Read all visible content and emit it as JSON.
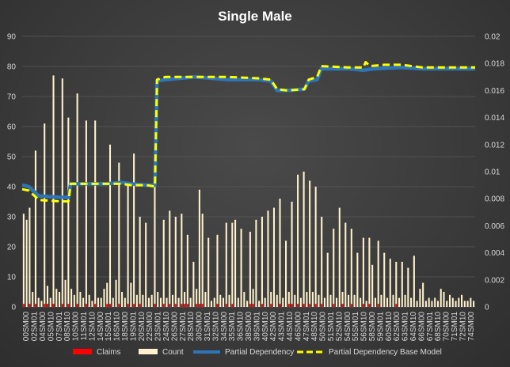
{
  "chart_data": {
    "type": "bar",
    "title": "Single Male",
    "xlabel": "",
    "ylabel": "",
    "y_left": {
      "range": [
        0,
        90
      ],
      "ticks": [
        "0",
        "10",
        "20",
        "30",
        "40",
        "50",
        "60",
        "70",
        "80",
        "90"
      ]
    },
    "y_right": {
      "range": [
        0,
        0.02
      ],
      "ticks": [
        "0",
        "0.002",
        "0.004",
        "0.006",
        "0.008",
        "0.01",
        "0.012",
        "0.014",
        "0.016",
        "0.018",
        "0.02"
      ]
    },
    "grid": true,
    "legend_position": "bottom",
    "colors": {
      "claims": "#ff0000",
      "count": "#fff2cc",
      "partial_dependency": "#2e75b6",
      "base_model": "#ffff00"
    },
    "x_tick_labels": [
      "00SM00",
      "02SM01",
      "04SM00",
      "05SM10",
      "07SM01",
      "08SM10",
      "10SM00",
      "11SM01",
      "12SM10",
      "14SM00",
      "15SM01",
      "16SM10",
      "18SM00",
      "19SM01",
      "20SM10",
      "22SM00",
      "23SM01",
      "24SM10",
      "26SM00",
      "27SM01",
      "28SM10",
      "30SM00",
      "31SM01",
      "32SM10",
      "34SM00",
      "35SM01",
      "36SM10",
      "38SM00",
      "39SM01",
      "40SM10",
      "42SM00",
      "43SM01",
      "44SM10",
      "46SM00",
      "47SM01",
      "48SM10",
      "50SM00",
      "51SM01",
      "52SM10",
      "54SM00",
      "55SM01",
      "56SM10",
      "58SM00",
      "59SM01",
      "60SM10",
      "62SM00",
      "63SM01",
      "64SM10",
      "66SM00",
      "67SM01",
      "68SM10",
      "70SM00",
      "71SM01",
      "72SM10",
      "74SM00"
    ],
    "count_values": [
      31,
      29,
      33,
      5,
      52,
      3,
      2,
      61,
      7,
      3,
      77,
      6,
      5,
      76,
      9,
      63,
      6,
      4,
      71,
      5,
      3,
      62,
      4,
      2,
      62,
      3,
      3,
      6,
      8,
      54,
      3,
      9,
      48,
      5,
      3,
      41,
      8,
      51,
      4,
      30,
      4,
      28,
      3,
      4,
      40,
      5,
      3,
      29,
      3,
      32,
      4,
      30,
      3,
      31,
      5,
      24,
      3,
      15,
      6,
      39,
      31,
      5,
      23,
      2,
      3,
      24,
      4,
      3,
      28,
      4,
      28,
      29,
      3,
      26,
      5,
      2,
      25,
      6,
      29,
      2,
      30,
      3,
      32,
      5,
      33,
      4,
      36,
      3,
      22,
      5,
      35,
      4,
      44,
      3,
      45,
      5,
      42,
      5,
      40,
      4,
      30,
      3,
      18,
      4,
      26,
      3,
      33,
      5,
      28,
      4,
      26,
      4,
      18,
      3,
      23,
      2,
      23,
      14,
      3,
      22,
      4,
      18,
      3,
      16,
      4,
      15,
      3,
      15,
      4,
      13,
      3,
      17,
      2,
      6,
      8,
      2,
      3,
      2,
      3,
      2,
      6,
      5,
      2,
      4,
      3,
      2,
      3,
      4,
      2,
      2,
      3,
      2
    ],
    "claims_values": [
      1,
      0,
      1,
      0,
      1,
      0,
      0,
      1,
      1,
      0,
      1,
      0,
      0,
      1,
      0,
      1,
      0,
      0,
      1,
      0,
      0,
      1,
      0,
      0,
      1,
      0,
      0,
      0,
      1,
      1,
      0,
      0,
      1,
      0,
      0,
      1,
      0,
      1,
      0,
      1,
      0,
      0,
      0,
      0,
      1,
      0,
      0,
      1,
      0,
      1,
      0,
      1,
      0,
      1,
      1,
      1,
      0,
      0,
      1,
      1,
      1,
      0,
      0,
      0,
      0,
      1,
      0,
      0,
      1,
      0,
      1,
      0,
      0,
      0,
      0,
      0,
      1,
      1,
      0,
      0,
      1,
      0,
      0,
      1,
      0,
      0,
      1,
      0,
      0,
      1,
      1,
      0,
      1,
      0,
      1,
      0,
      1,
      0,
      1,
      0,
      1,
      0,
      0,
      0,
      1,
      0,
      0,
      1,
      0,
      0,
      1,
      0,
      0,
      0,
      1,
      0,
      1,
      0,
      0,
      1,
      0,
      0,
      0,
      0,
      0,
      1,
      0,
      0,
      0,
      0,
      0,
      0,
      0,
      0,
      0,
      0,
      0,
      0,
      0,
      0,
      0,
      0,
      0,
      0,
      0,
      0,
      0,
      0,
      0,
      0,
      0,
      0
    ],
    "partial_dependency": [
      [
        0,
        0.009
      ],
      [
        3,
        0.0089
      ],
      [
        8,
        0.0082
      ],
      [
        18,
        0.0081
      ],
      [
        22,
        0.0081
      ],
      [
        23,
        0.0091
      ],
      [
        30,
        0.0091
      ],
      [
        40,
        0.0091
      ],
      [
        47,
        0.0092
      ],
      [
        52,
        0.0091
      ],
      [
        59,
        0.009
      ],
      [
        63,
        0.009
      ],
      [
        64,
        0.0167
      ],
      [
        68,
        0.0168
      ],
      [
        82,
        0.017
      ],
      [
        98,
        0.0168
      ],
      [
        112,
        0.0168
      ],
      [
        118,
        0.0167
      ],
      [
        121,
        0.016
      ],
      [
        126,
        0.016
      ],
      [
        134,
        0.0161
      ],
      [
        136,
        0.0167
      ],
      [
        140,
        0.0168
      ],
      [
        142,
        0.0176
      ],
      [
        155,
        0.0176
      ],
      [
        162,
        0.0175
      ],
      [
        167,
        0.0176
      ],
      [
        180,
        0.0177
      ],
      [
        190,
        0.0176
      ],
      [
        212,
        0.0176
      ],
      [
        215,
        0.0176
      ]
    ],
    "partial_dependency_base_model": [
      [
        0,
        0.0087
      ],
      [
        3,
        0.0086
      ],
      [
        8,
        0.0079
      ],
      [
        18,
        0.0078
      ],
      [
        22,
        0.0078
      ],
      [
        23,
        0.0091
      ],
      [
        30,
        0.0091
      ],
      [
        40,
        0.0091
      ],
      [
        47,
        0.0091
      ],
      [
        52,
        0.009
      ],
      [
        59,
        0.009
      ],
      [
        63,
        0.0089
      ],
      [
        64,
        0.0168
      ],
      [
        68,
        0.017
      ],
      [
        82,
        0.017
      ],
      [
        98,
        0.017
      ],
      [
        112,
        0.0169
      ],
      [
        118,
        0.0168
      ],
      [
        121,
        0.0161
      ],
      [
        126,
        0.016
      ],
      [
        134,
        0.0161
      ],
      [
        136,
        0.0168
      ],
      [
        140,
        0.017
      ],
      [
        142,
        0.0178
      ],
      [
        155,
        0.0177
      ],
      [
        162,
        0.0177
      ],
      [
        163,
        0.0181
      ],
      [
        165,
        0.0178
      ],
      [
        172,
        0.0179
      ],
      [
        180,
        0.0179
      ],
      [
        190,
        0.0177
      ],
      [
        212,
        0.0177
      ],
      [
        215,
        0.0177
      ]
    ],
    "legend": [
      "Claims",
      "Count",
      "Partial Dependency",
      "Partial Dependency Base Model"
    ]
  }
}
